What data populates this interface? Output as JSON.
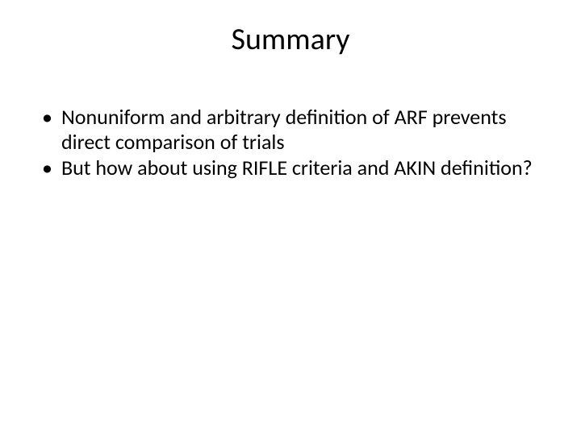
{
  "slide": {
    "title": "Summary",
    "title_fontsize": 38,
    "title_color": "#000000",
    "body_fontsize": 26,
    "body_color": "#000000",
    "line_height": 1.18,
    "bullets": [
      "Nonuniform and arbitrary definition of ARF prevents direct comparison of trials",
      "But how about using RIFLE criteria and AKIN definition?"
    ],
    "background_color": "#ffffff"
  }
}
